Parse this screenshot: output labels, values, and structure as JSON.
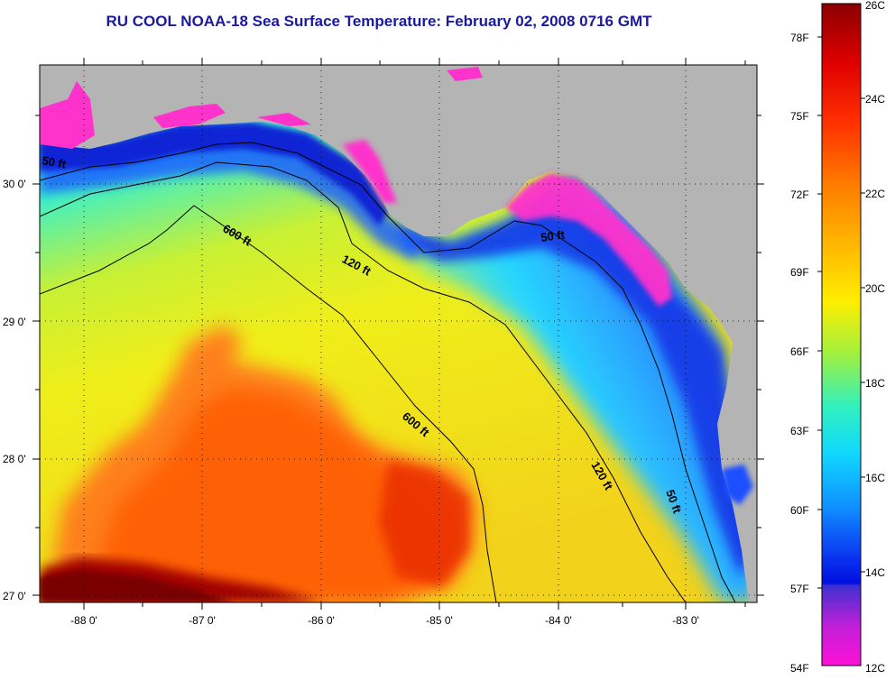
{
  "title": "RU COOL  NOAA-18  Sea Surface Temperature:  February 02, 2008 0716 GMT",
  "axes": {
    "lon_ticks": [
      "-88 0'",
      "-87 0'",
      "-86 0'",
      "-85 0'",
      "-84 0'",
      "-83 0'"
    ],
    "lat_ticks": [
      "30 0'",
      "29 0'",
      "28 0'",
      "27 0'"
    ]
  },
  "contours": {
    "fifty_ft": "50 ft",
    "one_twenty_ft": "120 ft",
    "six_hundred_ft": "600 ft"
  },
  "colorbar": {
    "fahrenheit_labels": [
      "78F",
      "75F",
      "72F",
      "69F",
      "66F",
      "63F",
      "60F",
      "57F",
      "54F"
    ],
    "celsius_labels": [
      "26C",
      "24C",
      "22C",
      "20C",
      "18C",
      "16C",
      "14C",
      "12C"
    ]
  },
  "colors": {
    "land": "#b4b4b4",
    "title": "#1a1aa0",
    "warm": "#ff5a00",
    "hot": "#8b0000",
    "cold_coast": "#ff33cc",
    "deep_blue": "#0a1ed2"
  }
}
